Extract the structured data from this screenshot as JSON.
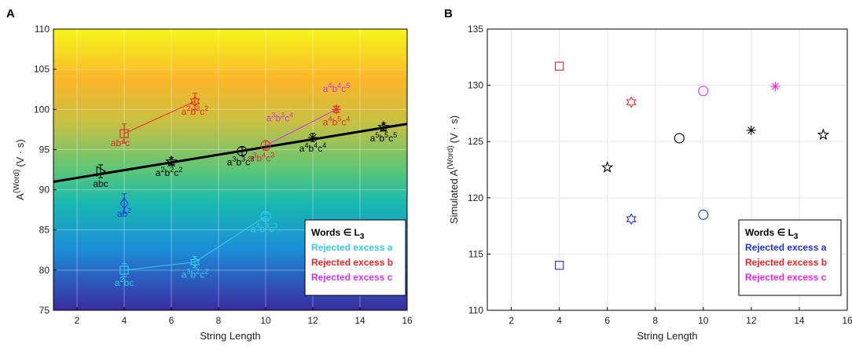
{
  "chart_data": [
    {
      "panel": "A",
      "type": "scatter",
      "xlabel": "String Length",
      "ylabel_main": "A",
      "ylabel_sup": "(Word)",
      "ylabel_unit": "(V · s)",
      "xlim": [
        1,
        16
      ],
      "ylim": [
        75,
        110
      ],
      "xticks": [
        2,
        4,
        6,
        8,
        10,
        12,
        14,
        16
      ],
      "yticks": [
        75,
        80,
        85,
        90,
        95,
        100,
        105,
        110
      ],
      "fit_line": {
        "x": [
          1,
          16
        ],
        "y": [
          91.0,
          98.2
        ]
      },
      "series": [
        {
          "name": "Words ∈ L3",
          "legend_main": "Words ∈ L",
          "legend_sub": "3",
          "color": "#000000",
          "points": [
            {
              "x": 3,
              "y": 92.3,
              "marker": "triangle-right",
              "label": "abc",
              "err": 0.8
            },
            {
              "x": 6,
              "y": 93.5,
              "marker": "pentagram",
              "label": "a2b2c2",
              "err": 0.5
            },
            {
              "x": 9,
              "y": 94.8,
              "marker": "circle",
              "label": "a3b3c3",
              "err": 0.5
            },
            {
              "x": 12,
              "y": 96.5,
              "marker": "asterisk",
              "label": "a4b4c4",
              "err": 0.5
            },
            {
              "x": 15,
              "y": 97.8,
              "marker": "pentagram",
              "label": "a5b5c5",
              "err": 0.5
            }
          ]
        },
        {
          "name": "Rejected excess a",
          "color": "#33ccee",
          "points": [
            {
              "x": 4,
              "y": 80.0,
              "marker": "square",
              "label": "a2bc",
              "err": 0.8
            },
            {
              "x": 7,
              "y": 81.0,
              "marker": "hexagram",
              "label": "a3b2c2",
              "err": 0.7
            },
            {
              "x": 10,
              "y": 86.7,
              "marker": "circle",
              "label": "a4b3c3",
              "err": 0.3
            }
          ]
        },
        {
          "name": "Rejected excess b",
          "color": "#ee2222",
          "points": [
            {
              "x": 4,
              "y": 97.0,
              "marker": "square",
              "label": "ab2c",
              "err": 1.2
            },
            {
              "x": 7,
              "y": 101.0,
              "marker": "hexagram",
              "label": "a2b3c2",
              "err": 1.0
            },
            {
              "x": 10,
              "y": 95.5,
              "marker": "circle",
              "label": "a3b4c3",
              "err": 0.6
            },
            {
              "x": 13,
              "y": 100.0,
              "marker": "asterisk",
              "label": "a4b5c4",
              "err": 0.4
            }
          ]
        },
        {
          "name": "Rejected excess c",
          "color": "#cc33ee",
          "points": [
            {
              "x": 4,
              "y": 88.3,
              "marker": "diamond",
              "label": "ab2",
              "color": "#2233dd",
              "err": 1.2
            }
          ]
        }
      ],
      "series_c_extra": {
        "label1": "a3b3c4",
        "label2": "a4b4c5"
      }
    },
    {
      "panel": "B",
      "type": "scatter",
      "xlabel": "String Length",
      "ylabel_main": "Simulated A",
      "ylabel_sup": "(Word)",
      "ylabel_unit": "(V · s)",
      "xlim": [
        1,
        16
      ],
      "ylim": [
        110,
        135
      ],
      "xticks": [
        2,
        4,
        6,
        8,
        10,
        12,
        14,
        16
      ],
      "yticks": [
        110,
        115,
        120,
        125,
        130,
        135
      ],
      "series": [
        {
          "name": "Words ∈ L3",
          "legend_main": "Words ∈ L",
          "legend_sub": "3",
          "color": "#000000",
          "points": [
            {
              "x": 6,
              "y": 122.7,
              "marker": "pentagram"
            },
            {
              "x": 9,
              "y": 125.3,
              "marker": "circle"
            },
            {
              "x": 12,
              "y": 126.0,
              "marker": "asterisk"
            },
            {
              "x": 15,
              "y": 125.6,
              "marker": "pentagram"
            }
          ]
        },
        {
          "name": "Rejected excess a",
          "color": "#1f2fdd",
          "points": [
            {
              "x": 4,
              "y": 114.0,
              "marker": "square"
            },
            {
              "x": 7,
              "y": 118.1,
              "marker": "hexagram"
            },
            {
              "x": 10,
              "y": 118.5,
              "marker": "circle"
            }
          ]
        },
        {
          "name": "Rejected excess b",
          "color": "#ee2222",
          "points": [
            {
              "x": 4,
              "y": 131.7,
              "marker": "square"
            },
            {
              "x": 7,
              "y": 128.5,
              "marker": "hexagram"
            }
          ]
        },
        {
          "name": "Rejected excess c",
          "color": "#ee22ee",
          "points": [
            {
              "x": 10,
              "y": 129.5,
              "marker": "circle"
            },
            {
              "x": 13,
              "y": 129.9,
              "marker": "asterisk"
            }
          ]
        }
      ]
    }
  ]
}
